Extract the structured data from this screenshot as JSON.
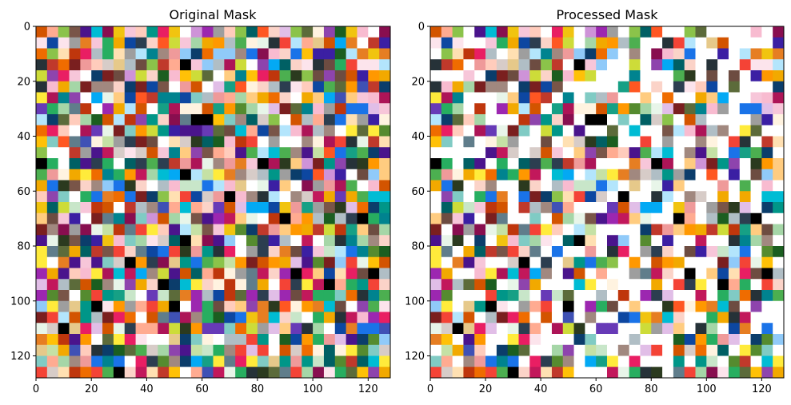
{
  "chart_data": [
    {
      "type": "heatmap",
      "title": "Original Mask",
      "grid": "32x32 randomly coloured 4x4 pixel blocks (128x128 mask), individual cell colours not enumerated",
      "xlim": [
        0,
        128
      ],
      "ylim": [
        128,
        0
      ],
      "x_ticks": [
        0,
        20,
        40,
        60,
        80,
        100,
        120
      ],
      "y_ticks": [
        0,
        20,
        40,
        60,
        80,
        100,
        120
      ],
      "x_tick_labels": [
        "0",
        "20",
        "40",
        "60",
        "80",
        "100",
        "120"
      ],
      "y_tick_labels": [
        "0",
        "20",
        "40",
        "60",
        "80",
        "100",
        "120"
      ],
      "white_fraction": 0.05,
      "seed": 17
    },
    {
      "type": "heatmap",
      "title": "Processed Mask",
      "grid": "32x32 coloured 4x4 pixel blocks (128x128 mask); many cells set to white after processing, individual cell colours not enumerated",
      "xlim": [
        0,
        128
      ],
      "ylim": [
        128,
        0
      ],
      "x_ticks": [
        0,
        20,
        40,
        60,
        80,
        100,
        120
      ],
      "y_ticks": [
        0,
        20,
        40,
        60,
        80,
        100,
        120
      ],
      "x_tick_labels": [
        "0",
        "20",
        "40",
        "60",
        "80",
        "100",
        "120"
      ],
      "y_tick_labels": [
        "0",
        "20",
        "40",
        "60",
        "80",
        "100",
        "120"
      ],
      "white_fraction": 0.28,
      "seed": 17
    }
  ],
  "palette": [
    "#5c6b3a",
    "#2b3a1f",
    "#0b3d6b",
    "#f2a900",
    "#7a1f1f",
    "#e6c98a",
    "#3b1fa3",
    "#fbd3c8",
    "#1a73e8",
    "#c0392b",
    "#f7c6d9",
    "#e67e22",
    "#8e44ad",
    "#16a085",
    "#2c3e50",
    "#f1c40f",
    "#d35400",
    "#27ae60",
    "#c2185b",
    "#ff5722",
    "#795548",
    "#9e9e9e",
    "#607d8b",
    "#00bcd4",
    "#cddc39",
    "#ff9800",
    "#e91e63",
    "#3f51b5",
    "#4caf50",
    "#ffeb3b",
    "#9c27b0",
    "#03a9f4",
    "#8bc34a",
    "#ffc107",
    "#673ab7",
    "#009688",
    "#f44336",
    "#b0bec5",
    "#a1887f",
    "#ffccbc",
    "#d7ccc8",
    "#c5e1a5",
    "#b3e5fc",
    "#f8bbd0",
    "#ffe0b2",
    "#1b5e20",
    "#880e4f",
    "#0d47a1",
    "#bf360c",
    "#4a148c",
    "#006064",
    "#263238",
    "#fce4ec",
    "#e8f5e9",
    "#fff3e0",
    "#e1bee7",
    "#c8e6c9",
    "#ffab91",
    "#90caf9",
    "#a5d6a7",
    "#ef9a9a",
    "#80cbc4",
    "#ce93d8",
    "#ffcc80",
    "#000000",
    "#6d4c41",
    "#558b2f",
    "#ad1457",
    "#00838f",
    "#ef6c00"
  ]
}
